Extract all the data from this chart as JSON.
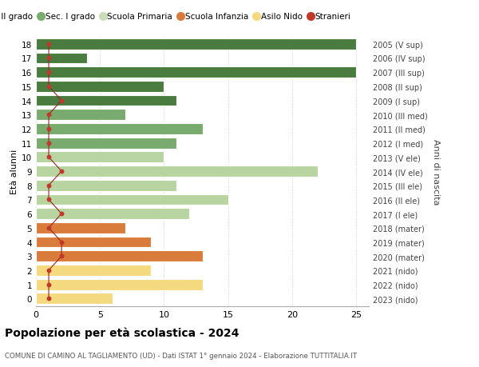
{
  "ages": [
    18,
    17,
    16,
    15,
    14,
    13,
    12,
    11,
    10,
    9,
    8,
    7,
    6,
    5,
    4,
    3,
    2,
    1,
    0
  ],
  "right_labels": [
    "2005 (V sup)",
    "2006 (IV sup)",
    "2007 (III sup)",
    "2008 (II sup)",
    "2009 (I sup)",
    "2010 (III med)",
    "2011 (II med)",
    "2012 (I med)",
    "2013 (V ele)",
    "2014 (IV ele)",
    "2015 (III ele)",
    "2016 (II ele)",
    "2017 (I ele)",
    "2018 (mater)",
    "2019 (mater)",
    "2020 (mater)",
    "2021 (nido)",
    "2022 (nido)",
    "2023 (nido)"
  ],
  "bar_values": [
    25,
    4,
    25,
    10,
    11,
    7,
    13,
    11,
    10,
    22,
    11,
    15,
    12,
    7,
    9,
    13,
    9,
    13,
    6
  ],
  "bar_colors": [
    "#4a7c3f",
    "#4a7c3f",
    "#4a7c3f",
    "#4a7c3f",
    "#4a7c3f",
    "#7aab6e",
    "#7aab6e",
    "#7aab6e",
    "#b8d4a0",
    "#b8d4a0",
    "#b8d4a0",
    "#b8d4a0",
    "#b8d4a0",
    "#d97b3a",
    "#d97b3a",
    "#d97b3a",
    "#f5d97e",
    "#f5d97e",
    "#f5d97e"
  ],
  "stranieri_x": [
    1,
    1,
    1,
    1,
    2,
    1,
    1,
    1,
    1,
    2,
    1,
    1,
    2,
    1,
    2,
    2,
    1,
    1,
    1
  ],
  "legend_labels": [
    "Sec. II grado",
    "Sec. I grado",
    "Scuola Primaria",
    "Scuola Infanzia",
    "Asilo Nido",
    "Stranieri"
  ],
  "legend_colors": [
    "#4a7c3f",
    "#7aab6e",
    "#c8ddb8",
    "#d97b3a",
    "#f5d97e",
    "#c0392b"
  ],
  "xlabel_left": "Età alunni",
  "xlabel_right": "Anni di nascita",
  "title": "Popolazione per età scolastica - 2024",
  "subtitle": "COMUNE DI CAMINO AL TAGLIAMENTO (UD) - Dati ISTAT 1° gennaio 2024 - Elaborazione TUTTITALIA.IT",
  "xlim": [
    0,
    26
  ],
  "xticks": [
    0,
    5,
    10,
    15,
    20,
    25
  ],
  "bg_color": "#ffffff",
  "grid_color": "#cccccc",
  "stranieri_color": "#c0392b",
  "stranieri_line_color": "#9b2222"
}
